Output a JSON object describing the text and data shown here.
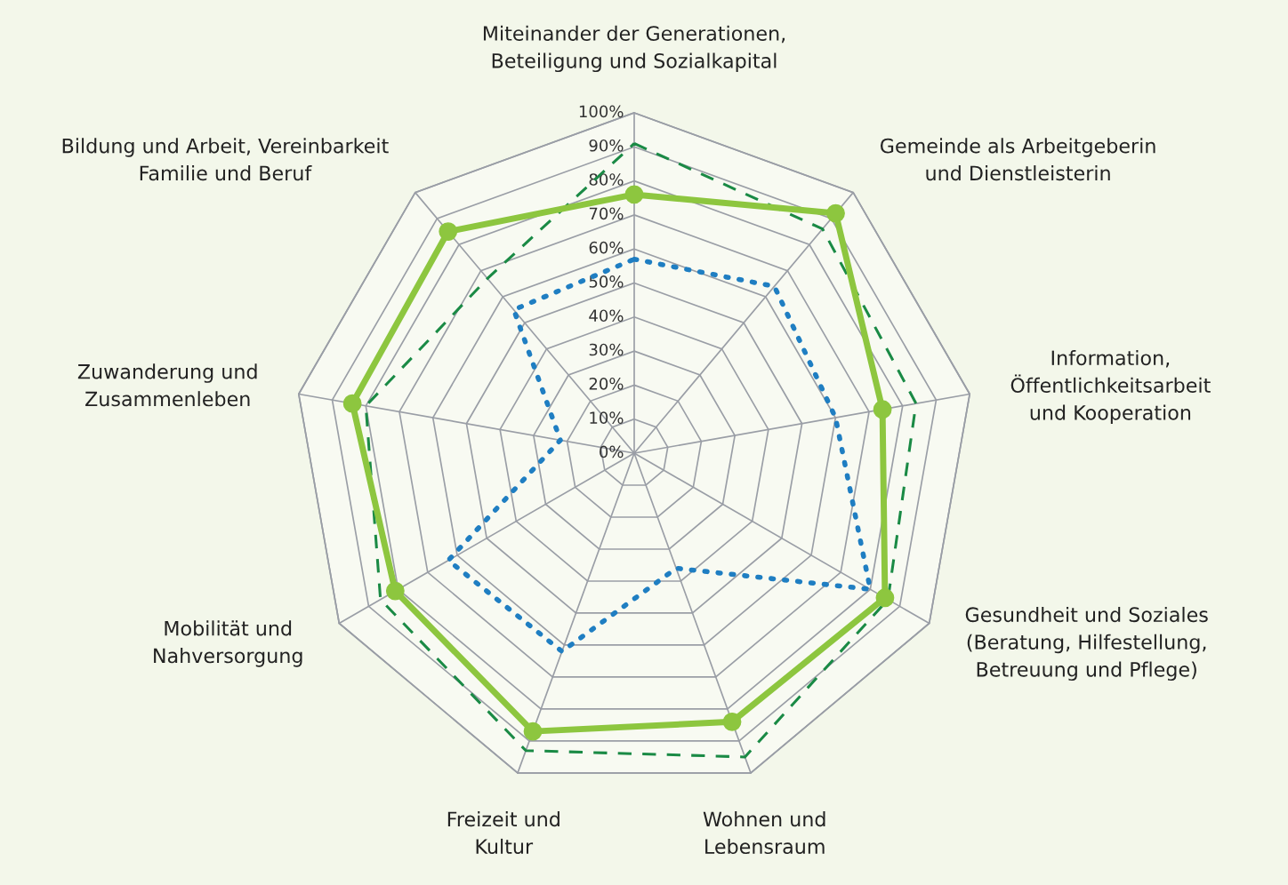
{
  "chart_data": {
    "type": "radar",
    "categories": [
      "Miteinander der Generationen,\nBeteiligung und Sozialkapital",
      "Gemeinde als Arbeitgeberin\nund Dienstleisterin",
      "Information,\nÖffentlichkeitsarbeit\nund Kooperation",
      "Gesundheit und Soziales\n(Beratung, Hilfestellung,\nBetreuung und Pflege)",
      "Wohnen und\nLebensraum",
      "Freizeit und\nKultur",
      "Mobilität und\nNahversorgung",
      "Zuwanderung und\nZusammenleben",
      "Bildung und Arbeit, Vereinbarkeit\nFamilie und Beruf"
    ],
    "series": [
      {
        "color": "#1a8a45",
        "line_style": "dashed",
        "marker": "none",
        "values": [
          91,
          86,
          84,
          86,
          95,
          93,
          86,
          80,
          67
        ]
      },
      {
        "color": "#1f7ec2",
        "line_style": "dotted",
        "marker": "none",
        "values": [
          57,
          64,
          60,
          80,
          36,
          62,
          63,
          22,
          55
        ]
      },
      {
        "color": "#8dc63f",
        "line_style": "solid",
        "marker": "circle",
        "values": [
          76,
          92,
          74,
          85,
          84,
          87,
          81,
          84,
          85
        ]
      }
    ],
    "ylim": [
      0,
      100
    ],
    "yticks": [
      {
        "value": 0,
        "label": "0%"
      },
      {
        "value": 10,
        "label": "10%"
      },
      {
        "value": 20,
        "label": "20%"
      },
      {
        "value": 30,
        "label": "30%"
      },
      {
        "value": 40,
        "label": "40%"
      },
      {
        "value": 50,
        "label": "50%"
      },
      {
        "value": 60,
        "label": "60%"
      },
      {
        "value": 70,
        "label": "70%"
      },
      {
        "value": 80,
        "label": "80%"
      },
      {
        "value": 90,
        "label": "90%"
      },
      {
        "value": 100,
        "label": "100%"
      }
    ],
    "grid": true
  }
}
